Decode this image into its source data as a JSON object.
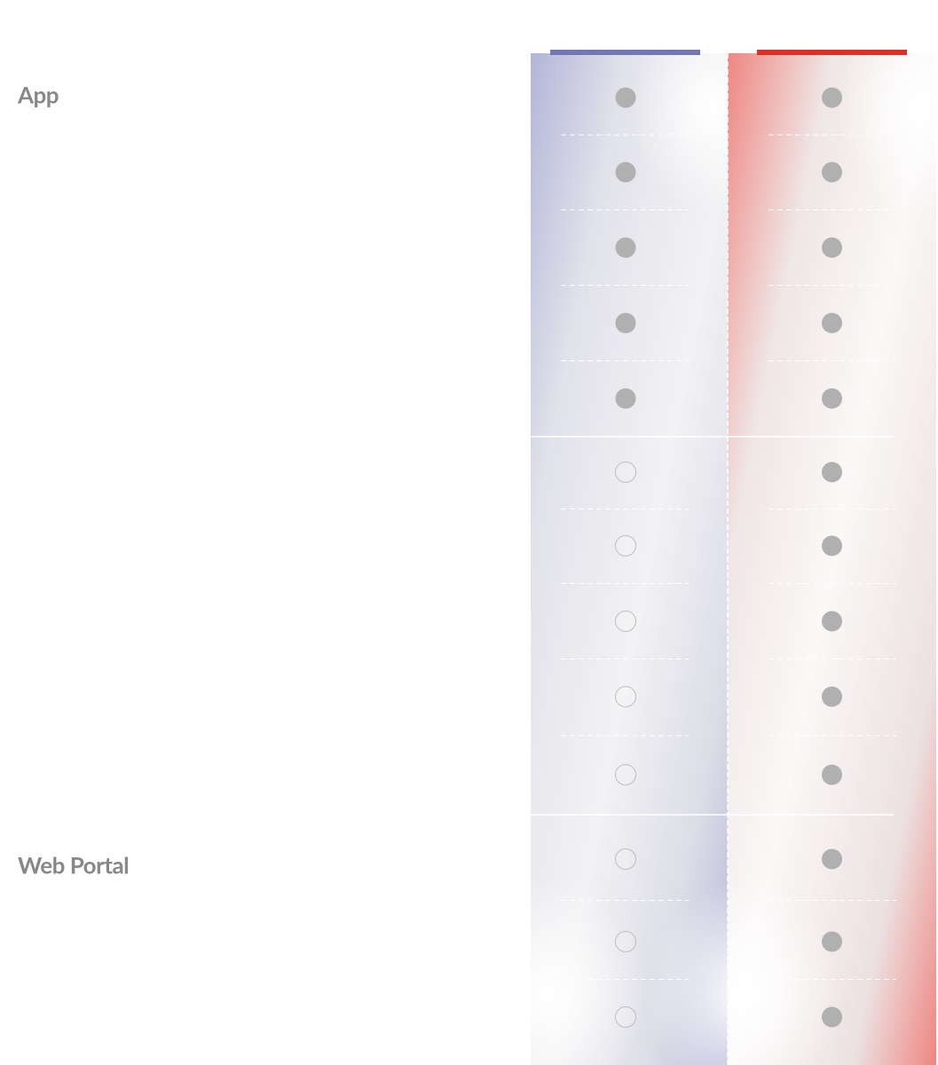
{
  "columns": [
    {
      "color": "#7276b3"
    },
    {
      "color": "#dc2f26"
    }
  ],
  "sections": [
    {
      "title": "App",
      "rows": [
        [
          true,
          true
        ],
        [
          true,
          true
        ],
        [
          true,
          true
        ],
        [
          true,
          true
        ],
        [
          true,
          true
        ]
      ]
    },
    {
      "rows": [
        [
          false,
          true
        ],
        [
          false,
          true
        ],
        [
          false,
          true
        ],
        [
          false,
          true
        ],
        [
          false,
          true
        ]
      ]
    },
    {
      "title": "Web Portal",
      "rows": [
        [
          false,
          true
        ],
        [
          false,
          true
        ],
        [
          false,
          true
        ]
      ]
    }
  ]
}
